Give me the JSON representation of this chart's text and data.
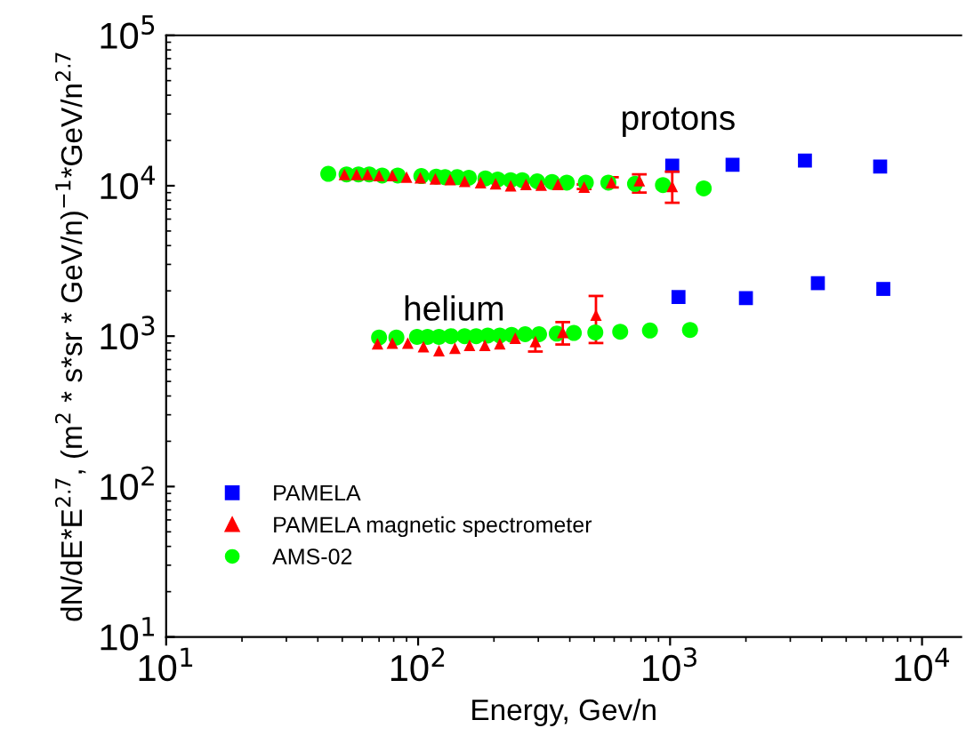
{
  "chart_data": {
    "type": "scatter",
    "xlabel": "Energy, Gev/n",
    "ylabel": "dN/dE*E$^{2.7}$, (m$^{2}$ * s*sr * GeV/n)$^{−1}$*GeV/n$^{2.7}$",
    "log": "xy",
    "xlim": [
      10,
      14300
    ],
    "ylim": [
      10,
      100000
    ],
    "xticks": [
      {
        "value": 10,
        "label": "10$^{1}$"
      },
      {
        "value": 100,
        "label": "10$^{2}$"
      },
      {
        "value": 1000,
        "label": "10$^{3}$"
      },
      {
        "value": 10000,
        "label": "10$^{4}$"
      }
    ],
    "yticks": [
      {
        "value": 10,
        "label": "10$^{1}$"
      },
      {
        "value": 100,
        "label": "10$^{2}$"
      },
      {
        "value": 1000,
        "label": "10$^{3}$"
      },
      {
        "value": 10000,
        "label": "10$^{4}$"
      },
      {
        "value": 100000,
        "label": "10$^{5}$"
      }
    ],
    "grid": false,
    "legend": "bottom left",
    "annotations": [
      "protons",
      "helium"
    ],
    "series": [
      {
        "name": "PAMELA",
        "color": "#0000ff",
        "marker": "square",
        "x": [
          1020,
          1770,
          3430,
          6820,
          1080,
          2000,
          3860,
          7020
        ],
        "values": [
          13600,
          13800,
          14700,
          13400,
          1820,
          1790,
          2250,
          2060
        ]
      },
      {
        "name": "PAMELA magnetic spectrometer",
        "color": "#ff0000",
        "marker": "triangle",
        "x": [
          51,
          57,
          63,
          70,
          79,
          90,
          102,
          117,
          134,
          153,
          177,
          203,
          233,
          268,
          308,
          359,
          456,
          585,
          755,
          1020,
          69,
          79,
          91,
          105,
          121,
          140,
          160,
          184,
          211,
          243,
          292,
          375,
          508
        ],
        "values": [
          11900,
          11900,
          11900,
          11700,
          11700,
          11400,
          11300,
          11100,
          11000,
          10700,
          10500,
          10300,
          10000,
          10200,
          10100,
          10200,
          9800,
          10500,
          10800,
          9900,
          890,
          900,
          900,
          850,
          800,
          830,
          870,
          870,
          890,
          970,
          920,
          1060,
          1380
        ],
        "errors": [
          null,
          null,
          null,
          null,
          null,
          null,
          null,
          null,
          null,
          null,
          null,
          null,
          null,
          null,
          null,
          null,
          [
            9500,
            10200
          ],
          [
            9750,
            11400
          ],
          [
            9000,
            11900
          ],
          [
            7700,
            12400
          ],
          null,
          null,
          null,
          null,
          null,
          null,
          null,
          null,
          null,
          null,
          [
            790,
            1000
          ],
          [
            880,
            1240
          ],
          [
            900,
            1850
          ]
        ]
      },
      {
        "name": "AMS-02",
        "color": "#00ff00",
        "marker": "circle",
        "x": [
          44,
          52,
          58,
          64,
          72,
          83,
          103,
          118,
          128,
          143,
          159,
          185,
          207,
          233,
          259,
          297,
          340,
          389,
          463,
          569,
          726,
          937,
          1360,
          70,
          82,
          99,
          109,
          121,
          135,
          153,
          170,
          189,
          211,
          235,
          266,
          302,
          355,
          415,
          505,
          634,
          832,
          1200
        ],
        "values": [
          12000,
          11900,
          11900,
          11900,
          11700,
          11700,
          11600,
          11500,
          11400,
          11400,
          11300,
          11200,
          11000,
          10900,
          10900,
          10700,
          10600,
          10500,
          10500,
          10500,
          10300,
          10100,
          9600,
          980,
          980,
          990,
          990,
          990,
          1000,
          1000,
          1000,
          1010,
          1010,
          1020,
          1030,
          1030,
          1040,
          1050,
          1060,
          1070,
          1090,
          1100
        ]
      }
    ]
  }
}
